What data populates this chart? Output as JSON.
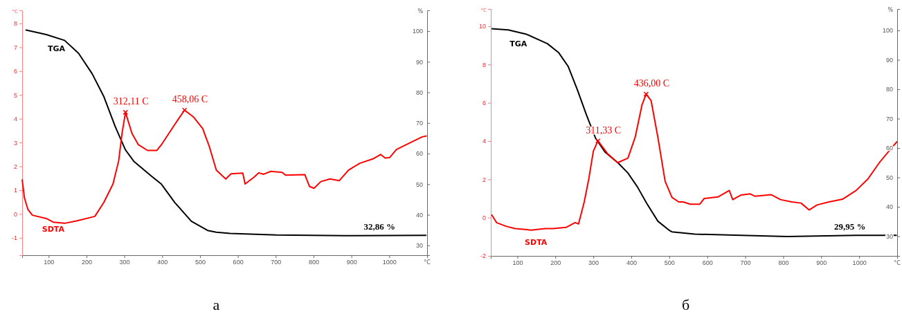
{
  "chart_data": [
    {
      "type": "line",
      "title": "а",
      "xlabel": "°C",
      "ylabel": "°C",
      "y2label": "%",
      "xlim": [
        30,
        1100
      ],
      "xticks": [
        100,
        200,
        300,
        400,
        500,
        600,
        700,
        800,
        900,
        1000
      ],
      "ylim": [
        -1.73,
        8.55
      ],
      "yticks": [
        -1,
        0,
        1,
        2,
        3,
        4,
        5,
        6,
        7,
        8
      ],
      "y2lim": [
        26.8,
        106.8
      ],
      "y2ticks": [
        30,
        40,
        50,
        60,
        70,
        80,
        90,
        100
      ],
      "grid": false,
      "legend": false,
      "marker": "none",
      "line_style": "solid",
      "series": [
        {
          "name": "TGA",
          "color": "#000000",
          "axis": "y2",
          "x": [
            39,
            94,
            142,
            179,
            215,
            246,
            276,
            303,
            325,
            368,
            398,
            434,
            477,
            520,
            543,
            580,
            702,
            884,
            1098
          ],
          "values": [
            100.4,
            98.9,
            97.0,
            92.8,
            86.1,
            78.6,
            68.8,
            61.2,
            57.5,
            53.0,
            50.0,
            43.9,
            37.9,
            34.9,
            34.3,
            33.9,
            33.4,
            33.2,
            33.3
          ]
        },
        {
          "name": "SDTA",
          "color": "#ff0000",
          "x": [
            30,
            36,
            45,
            57,
            94,
            112,
            142,
            173,
            222,
            246,
            270,
            285,
            294,
            303,
            320,
            337,
            361,
            386,
            398,
            410,
            434,
            459,
            483,
            507,
            525,
            543,
            568,
            582,
            613,
            619,
            643,
            655,
            668,
            687,
            717,
            726,
            777,
            789,
            801,
            819,
            843,
            868,
            892,
            922,
            959,
            977,
            989,
            1001,
            1019,
            1056,
            1087,
            1099
          ],
          "values": [
            1.45,
            0.68,
            0.2,
            -0.05,
            -0.19,
            -0.34,
            -0.39,
            -0.29,
            -0.1,
            0.49,
            1.26,
            2.23,
            3.39,
            4.27,
            3.39,
            2.91,
            2.67,
            2.67,
            2.91,
            3.2,
            3.78,
            4.36,
            4.07,
            3.59,
            2.81,
            1.84,
            1.47,
            1.69,
            1.72,
            1.26,
            1.55,
            1.73,
            1.67,
            1.79,
            1.75,
            1.63,
            1.65,
            1.16,
            1.08,
            1.36,
            1.47,
            1.4,
            1.84,
            2.13,
            2.33,
            2.5,
            2.35,
            2.37,
            2.71,
            3.0,
            3.24,
            3.28
          ]
        }
      ],
      "annotations": [
        {
          "text": "312,11 C",
          "x": 303,
          "y": 4.27
        },
        {
          "text": "458,06 C",
          "x": 459,
          "y": 4.36
        },
        "32,86 %"
      ]
    },
    {
      "type": "line",
      "title": "б",
      "xlabel": "°C",
      "ylabel": "°C",
      "y2label": "%",
      "xlim": [
        30,
        1100
      ],
      "xticks": [
        100,
        200,
        300,
        400,
        500,
        600,
        700,
        800,
        900,
        1000
      ],
      "ylim": [
        -2,
        10.9
      ],
      "yticks": [
        -2,
        0,
        2,
        4,
        6,
        8,
        10
      ],
      "y2lim": [
        23.3,
        107.3
      ],
      "y2ticks": [
        30,
        40,
        50,
        60,
        70,
        80,
        90,
        100
      ],
      "grid": false,
      "legend": false,
      "marker": "none",
      "line_style": "solid",
      "series": [
        {
          "name": "TGA",
          "color": "#000000",
          "axis": "y2",
          "x": [
            32,
            76,
            124,
            179,
            209,
            234,
            258,
            282,
            306,
            331,
            367,
            391,
            416,
            440,
            470,
            501,
            507,
            567,
            689,
            810,
            992,
            1099
          ],
          "values": [
            100.6,
            100.2,
            98.7,
            95.5,
            92.4,
            87.7,
            79.8,
            71.2,
            63.3,
            58.6,
            54.7,
            51.5,
            46.8,
            41.3,
            35.1,
            31.9,
            31.5,
            30.7,
            30.3,
            29.9,
            30.3,
            30.3
          ]
        },
        {
          "name": "SDTA",
          "color": "#ff0000",
          "x": [
            32,
            45,
            70,
            94,
            136,
            173,
            194,
            228,
            252,
            261,
            276,
            288,
            300,
            312,
            337,
            364,
            391,
            410,
            428,
            439,
            452,
            470,
            489,
            507,
            525,
            537,
            555,
            580,
            592,
            628,
            658,
            667,
            689,
            713,
            725,
            768,
            793,
            823,
            847,
            868,
            889,
            920,
            956,
            992,
            1023,
            1053,
            1083,
            1100
          ],
          "values": [
            0.16,
            -0.26,
            -0.45,
            -0.57,
            -0.65,
            -0.57,
            -0.57,
            -0.51,
            -0.26,
            -0.33,
            0.82,
            2.02,
            3.47,
            4.01,
            3.35,
            2.87,
            3.11,
            4.19,
            5.88,
            6.45,
            6.12,
            4.19,
            1.9,
            1.06,
            0.82,
            0.82,
            0.7,
            0.7,
            1.0,
            1.08,
            1.42,
            0.94,
            1.18,
            1.24,
            1.12,
            1.2,
            0.94,
            0.82,
            0.76,
            0.4,
            0.66,
            0.82,
            0.96,
            1.42,
            2.02,
            2.87,
            3.59,
            3.98
          ]
        }
      ],
      "annotations": [
        {
          "text": "311,33 C",
          "x": 312,
          "y": 4.01
        },
        {
          "text": "436,00 C",
          "x": 439,
          "y": 6.45
        },
        "29,95 %"
      ]
    }
  ]
}
